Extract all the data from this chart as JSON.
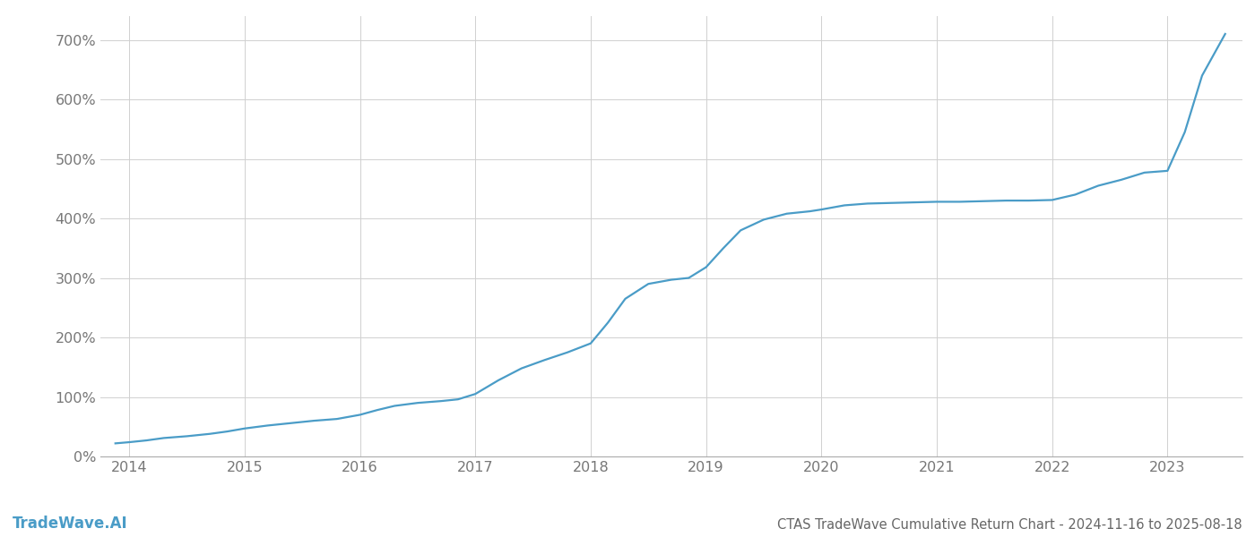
{
  "title": "CTAS TradeWave Cumulative Return Chart - 2024-11-16 to 2025-08-18",
  "watermark": "TradeWave.AI",
  "line_color": "#4a9cc7",
  "background_color": "#ffffff",
  "grid_color": "#d0d0d0",
  "x_years": [
    2014,
    2015,
    2016,
    2017,
    2018,
    2019,
    2020,
    2021,
    2022,
    2023
  ],
  "data_x": [
    2013.88,
    2014.0,
    2014.15,
    2014.3,
    2014.5,
    2014.7,
    2014.85,
    2015.0,
    2015.2,
    2015.4,
    2015.6,
    2015.8,
    2016.0,
    2016.15,
    2016.3,
    2016.5,
    2016.7,
    2016.85,
    2017.0,
    2017.2,
    2017.4,
    2017.6,
    2017.8,
    2018.0,
    2018.15,
    2018.3,
    2018.5,
    2018.7,
    2018.85,
    2019.0,
    2019.15,
    2019.3,
    2019.5,
    2019.7,
    2019.9,
    2020.0,
    2020.2,
    2020.4,
    2020.6,
    2020.8,
    2021.0,
    2021.2,
    2021.4,
    2021.6,
    2021.8,
    2022.0,
    2022.2,
    2022.4,
    2022.6,
    2022.8,
    2023.0,
    2023.15,
    2023.3,
    2023.5
  ],
  "data_y": [
    22,
    24,
    27,
    31,
    34,
    38,
    42,
    47,
    52,
    56,
    60,
    63,
    70,
    78,
    85,
    90,
    93,
    96,
    105,
    128,
    148,
    162,
    175,
    190,
    225,
    265,
    290,
    297,
    300,
    318,
    350,
    380,
    398,
    408,
    412,
    415,
    422,
    425,
    426,
    427,
    428,
    428,
    429,
    430,
    430,
    431,
    440,
    455,
    465,
    477,
    480,
    545,
    640,
    710
  ],
  "ylim": [
    0,
    740
  ],
  "xlim": [
    2013.75,
    2023.65
  ],
  "yticks": [
    0,
    100,
    200,
    300,
    400,
    500,
    600,
    700
  ],
  "ytick_labels": [
    "0%",
    "100%",
    "200%",
    "300%",
    "400%",
    "500%",
    "600%",
    "700%"
  ],
  "title_fontsize": 10.5,
  "watermark_fontsize": 12,
  "tick_fontsize": 11.5,
  "line_width": 1.6
}
